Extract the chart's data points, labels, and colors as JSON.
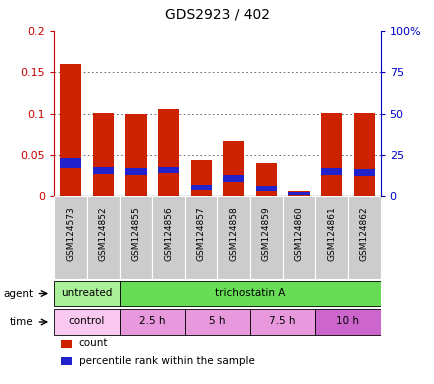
{
  "title": "GDS2923 / 402",
  "samples": [
    "GSM124573",
    "GSM124852",
    "GSM124855",
    "GSM124856",
    "GSM124857",
    "GSM124858",
    "GSM124859",
    "GSM124860",
    "GSM124861",
    "GSM124862"
  ],
  "red_values": [
    0.16,
    0.101,
    0.1,
    0.106,
    0.044,
    0.067,
    0.04,
    0.007,
    0.101,
    0.101
  ],
  "blue_bottom": [
    0.034,
    0.027,
    0.026,
    0.028,
    0.008,
    0.018,
    0.007,
    0.002,
    0.026,
    0.025
  ],
  "blue_height": [
    0.012,
    0.008,
    0.008,
    0.008,
    0.006,
    0.008,
    0.006,
    0.003,
    0.008,
    0.008
  ],
  "ylim": [
    0,
    0.2
  ],
  "yticks_left": [
    0,
    0.05,
    0.1,
    0.15,
    0.2
  ],
  "yticks_right": [
    0,
    25,
    50,
    75,
    100
  ],
  "ylabel_left_color": "#cc0000",
  "ylabel_right_color": "#0000cc",
  "agent_row": [
    {
      "label": "untreated",
      "color": "#aaf09a",
      "span": [
        0,
        2
      ]
    },
    {
      "label": "trichostatin A",
      "color": "#66dd55",
      "span": [
        2,
        10
      ]
    }
  ],
  "time_row": [
    {
      "label": "control",
      "color": "#f9c8f0",
      "span": [
        0,
        2
      ]
    },
    {
      "label": "2.5 h",
      "color": "#e899dd",
      "span": [
        2,
        4
      ]
    },
    {
      "label": "5 h",
      "color": "#e899dd",
      "span": [
        4,
        6
      ]
    },
    {
      "label": "7.5 h",
      "color": "#e899dd",
      "span": [
        6,
        8
      ]
    },
    {
      "label": "10 h",
      "color": "#cc66cc",
      "span": [
        8,
        10
      ]
    }
  ],
  "bar_width": 0.65,
  "red_color": "#cc2200",
  "blue_color": "#2222cc",
  "grid_color": "#555555",
  "bg_color": "#ffffff",
  "label_row_bg": "#cccccc",
  "agent_label": "agent",
  "time_label": "time",
  "legend_items": [
    {
      "label": "count",
      "color": "#cc2200"
    },
    {
      "label": "percentile rank within the sample",
      "color": "#2222cc"
    }
  ]
}
